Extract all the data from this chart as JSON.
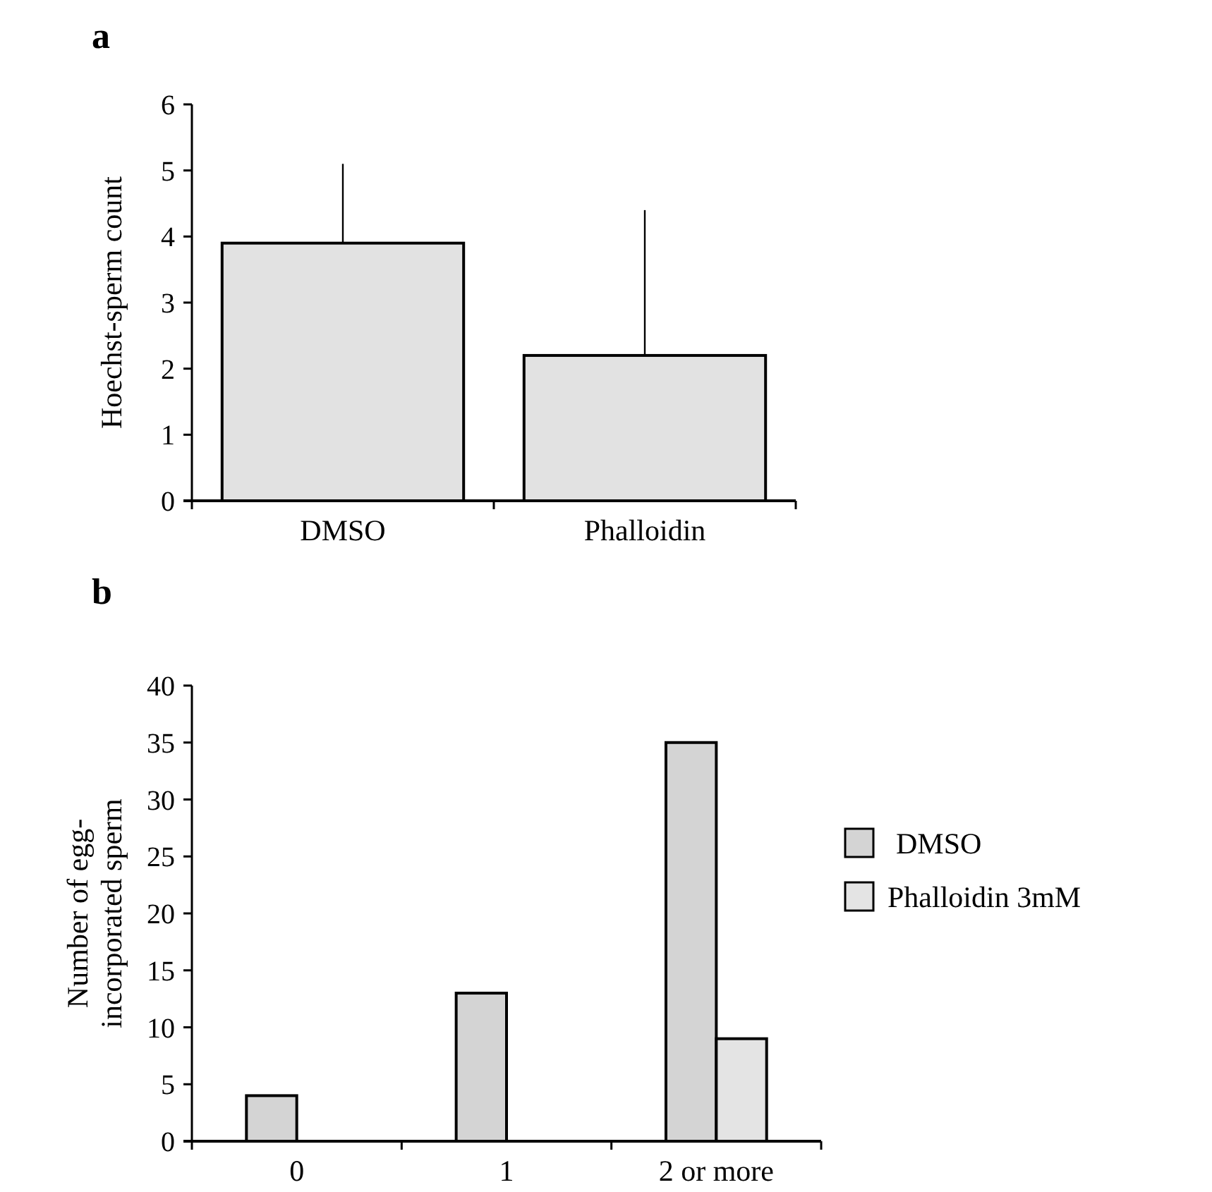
{
  "chart_data": [
    {
      "type": "bar",
      "title": "a",
      "ylabel": "Hoechst-sperm count",
      "categories": [
        "DMSO",
        "Phalloidin"
      ],
      "ylim": [
        0,
        6
      ],
      "yticks": [
        0,
        1,
        2,
        3,
        4,
        5,
        6
      ],
      "series": [
        {
          "color": "#e2e2e2",
          "values": [
            3.9,
            2.2
          ],
          "errors": [
            [
              3.9,
              5.1
            ],
            [
              2.2,
              4.4
            ]
          ]
        }
      ],
      "legend": false,
      "grid": false
    },
    {
      "type": "bar",
      "title": "b",
      "ylabel": "Number of egg-incorporated sperm",
      "categories": [
        "0",
        "1",
        "2 or more"
      ],
      "ylim": [
        0,
        40
      ],
      "yticks": [
        0,
        5,
        10,
        15,
        20,
        25,
        30,
        35,
        40
      ],
      "series": [
        {
          "name": "DMSO",
          "color": "#d4d4d4",
          "values": [
            4,
            13,
            35
          ]
        },
        {
          "name": "Phalloidin 3mM",
          "color": "#e4e4e4",
          "values": [
            0,
            0,
            9
          ]
        }
      ],
      "legend": "right",
      "grid": false
    }
  ]
}
